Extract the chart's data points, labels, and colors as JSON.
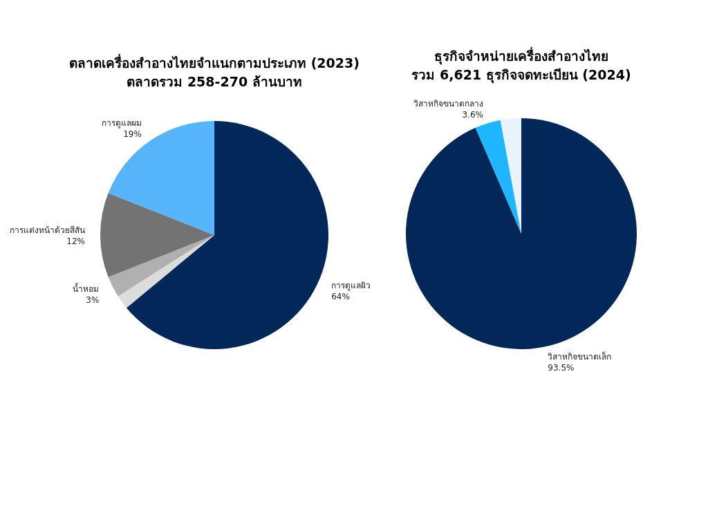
{
  "chart_data": [
    {
      "type": "pie",
      "title": "ตลาดเครื่องสำอางไทยจำแนกตามประเภท (2023)",
      "subtitle": "ตลาดรวม 258-270 ล้านบาท",
      "categories": [
        "การดูแลผิว",
        null,
        "น้ำหอม",
        "การแต่งหน้าด้วยสีสัน",
        "การดูแลผม"
      ],
      "values": [
        64,
        2,
        3,
        12,
        19
      ],
      "value_labels": [
        "64%",
        null,
        "3%",
        "12%",
        "19%"
      ],
      "colors": [
        "#022859",
        "#dcdcdc",
        "#b0b0b0",
        "#737373",
        "#56b4fa"
      ]
    },
    {
      "type": "pie",
      "title": "ธุรกิจจำหน่ายเครื่องสำอางไทย",
      "subtitle": "รวม 6,621 ธุรกิจจดทะเบียน (2024)",
      "categories": [
        "วิสาหกิจขนาดเล็ก",
        "วิสาหกิจขนาดกลาง",
        null
      ],
      "values": [
        93.5,
        3.6,
        2.9
      ],
      "value_labels": [
        "93.5%",
        "3.6%",
        null
      ],
      "colors": [
        "#022859",
        "#1fb5ff",
        "#e8f3fc"
      ]
    }
  ]
}
